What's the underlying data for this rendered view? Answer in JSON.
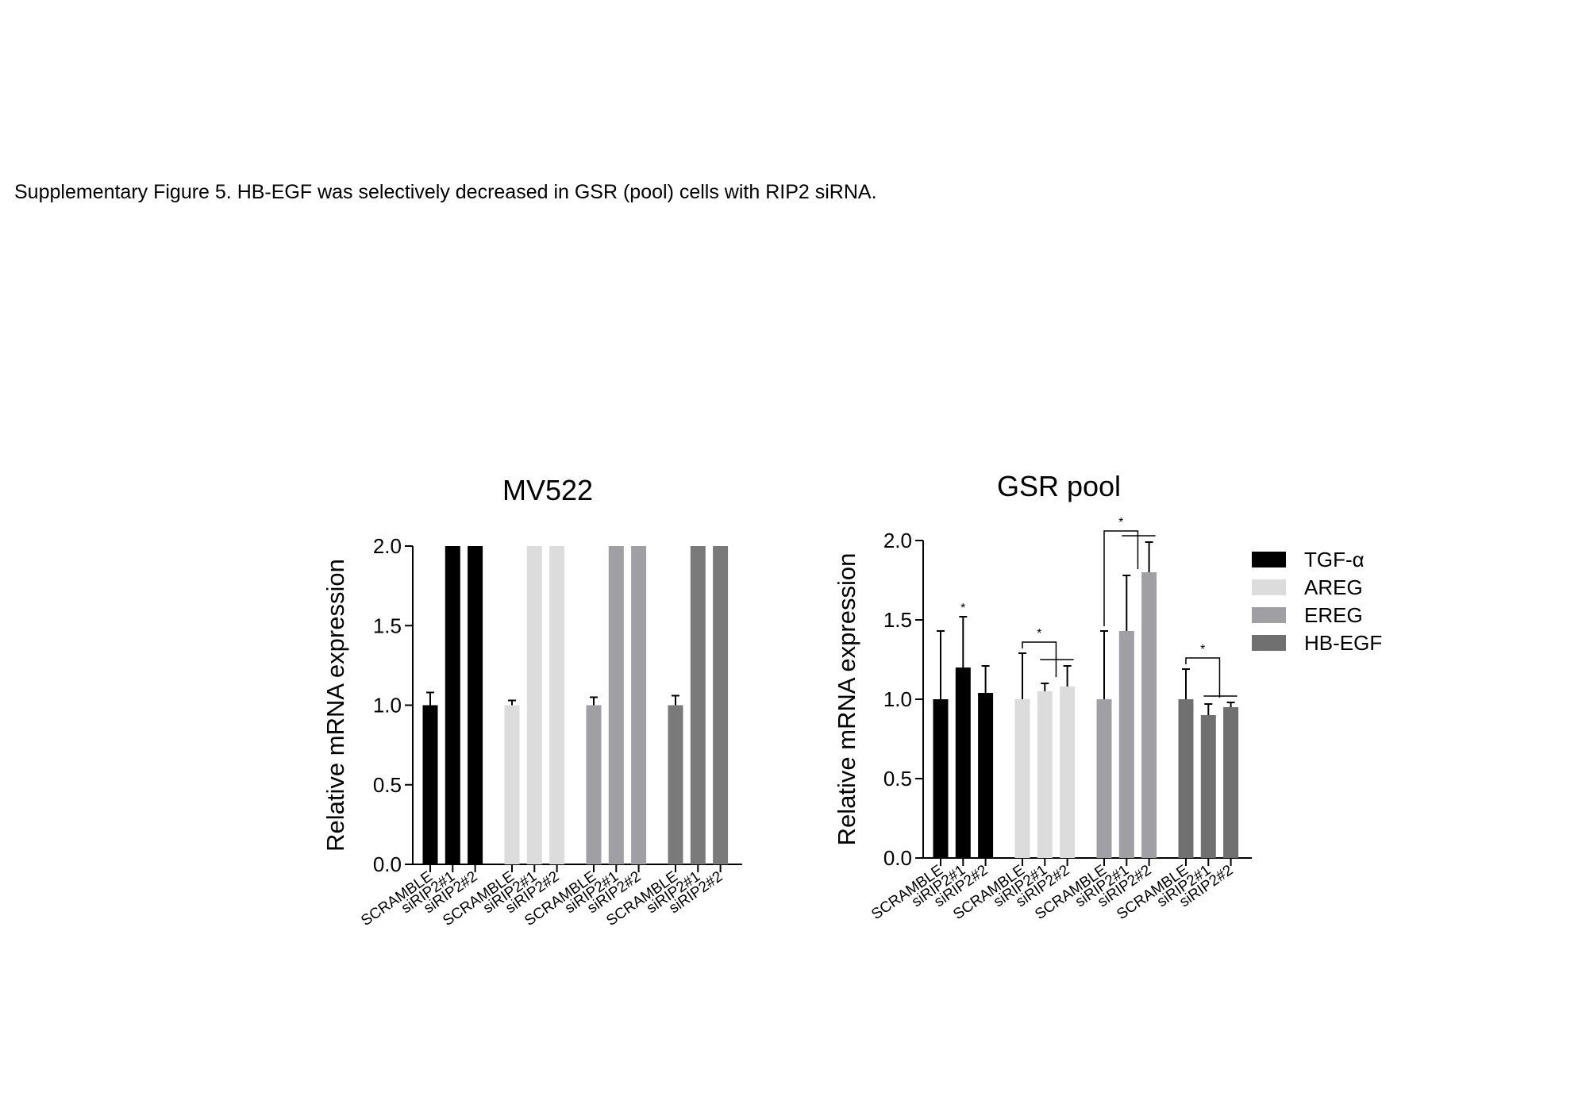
{
  "caption": "Supplementary Figure 5. HB-EGF was selectively decreased in GSR (pool) cells with RIP2 siRNA.",
  "chart_data": [
    {
      "type": "bar",
      "title": "MV522",
      "y_label": "Relative mRNA expression",
      "categories": [
        "SCRAMBLE",
        "siRIP2#1",
        "siRIP2#2"
      ],
      "series": [
        {
          "color": "#000000",
          "values": [
            1.0,
            2.0,
            2.0
          ],
          "errors": [
            0.08,
            null,
            null
          ]
        },
        {
          "color": "#dcdcdc",
          "values": [
            1.0,
            2.0,
            2.0
          ],
          "errors": [
            0.03,
            null,
            null
          ]
        },
        {
          "color": "#a0a0a4",
          "values": [
            1.0,
            2.0,
            2.0
          ],
          "errors": [
            0.05,
            null,
            null
          ]
        },
        {
          "color": "#7a7a7a",
          "values": [
            1.0,
            2.0,
            2.0
          ],
          "errors": [
            0.06,
            null,
            null
          ]
        }
      ],
      "ylim": [
        0,
        2.0
      ],
      "yticks": [
        {
          "value": 0,
          "label": "0.0"
        },
        {
          "value": 0.5,
          "label": "0.5"
        },
        {
          "value": 1,
          "label": "1.0"
        },
        {
          "value": 1.5,
          "label": "1.5"
        },
        {
          "value": 2,
          "label": "2.0"
        }
      ],
      "legend": false
    },
    {
      "type": "bar",
      "title": "GSR pool",
      "y_label": "Relative mRNA expression",
      "categories": [
        "SCRAMBLE",
        "siRIP2#1",
        "siRIP2#2"
      ],
      "series": [
        {
          "name": "TGF-α",
          "color": "#000000",
          "values": [
            1.0,
            1.2,
            1.04
          ],
          "errors": [
            0.43,
            0.32,
            0.17
          ]
        },
        {
          "name": "AREG",
          "color": "#dcdcdc",
          "values": [
            1.0,
            1.05,
            1.08
          ],
          "errors": [
            0.29,
            0.05,
            0.13
          ]
        },
        {
          "name": "EREG",
          "color": "#a0a0a4",
          "values": [
            1.0,
            1.43,
            1.8
          ],
          "errors": [
            0.43,
            0.35,
            0.19
          ]
        },
        {
          "name": "HB-EGF",
          "color": "#707070",
          "values": [
            1.0,
            0.9,
            0.95
          ],
          "errors": [
            0.19,
            0.07,
            0.03
          ]
        }
      ],
      "ylim": [
        0,
        2.0
      ],
      "yticks": [
        {
          "value": 0,
          "label": "0.0"
        },
        {
          "value": 0.5,
          "label": "0.5"
        },
        {
          "value": 1,
          "label": "1.0"
        },
        {
          "value": 1.5,
          "label": "1.5"
        },
        {
          "value": 2,
          "label": "2.0"
        }
      ],
      "annotations": [
        "*",
        "*",
        "*",
        "*"
      ],
      "legend": true
    }
  ]
}
